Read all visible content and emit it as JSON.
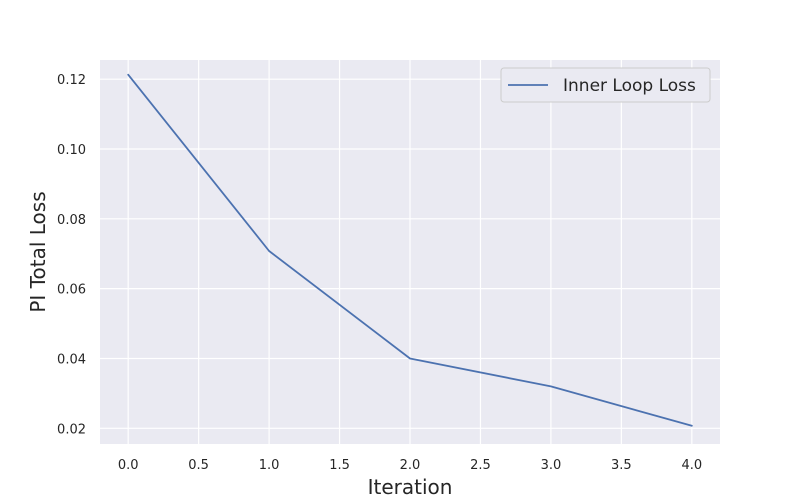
{
  "chart_data": {
    "type": "line",
    "title": "",
    "xlabel": "Iteration",
    "ylabel": "PI Total Loss",
    "xlim": [
      -0.2,
      4.2
    ],
    "ylim": [
      0.0155,
      0.1255
    ],
    "xticks": [
      0.0,
      0.5,
      1.0,
      1.5,
      2.0,
      2.5,
      3.0,
      3.5,
      4.0
    ],
    "xtick_labels": [
      "0.0",
      "0.5",
      "1.0",
      "1.5",
      "2.0",
      "2.5",
      "3.0",
      "3.5",
      "4.0"
    ],
    "yticks": [
      0.02,
      0.04,
      0.06,
      0.08,
      0.1,
      0.12
    ],
    "ytick_labels": [
      "0.02",
      "0.04",
      "0.06",
      "0.08",
      "0.10",
      "0.12"
    ],
    "grid": true,
    "legend_position": "top-right",
    "series": [
      {
        "name": "Inner Loop Loss",
        "color": "#4c72b0",
        "x": [
          0,
          1,
          2,
          3,
          4
        ],
        "y": [
          0.1213,
          0.0708,
          0.04,
          0.032,
          0.0207
        ]
      }
    ]
  },
  "style": {
    "plot_background": "#eaeaf2",
    "grid_color": "#ffffff",
    "legend_background": "#eaeaf2",
    "legend_border": "#cccccc"
  }
}
